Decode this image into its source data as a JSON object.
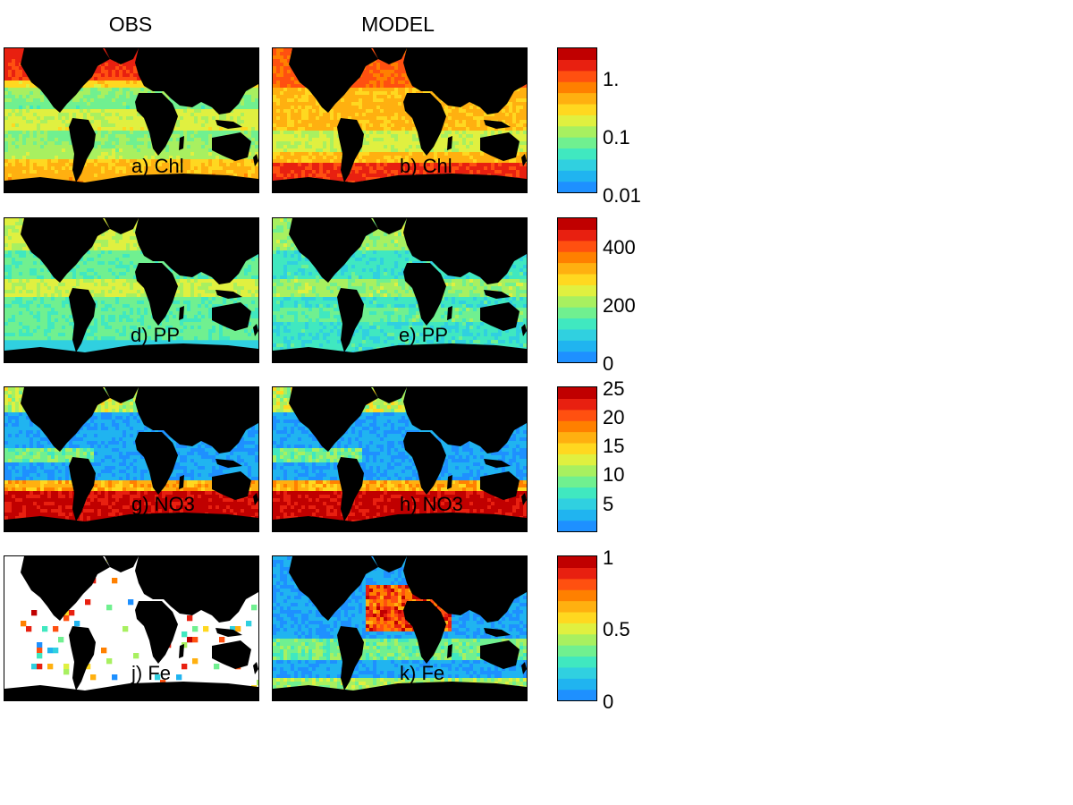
{
  "headers": {
    "obs": "OBS",
    "model": "MODEL"
  },
  "panels": [
    {
      "label": "a) Chl",
      "variant": "obs-chl"
    },
    {
      "label": "b) Chl",
      "variant": "model-chl"
    },
    {
      "label": "d) PP",
      "variant": "obs-pp"
    },
    {
      "label": "e) PP",
      "variant": "model-pp"
    },
    {
      "label": "g) NO3",
      "variant": "obs-no3"
    },
    {
      "label": "h) NO3",
      "variant": "model-no3"
    },
    {
      "label": "j) Fe",
      "variant": "obs-fe"
    },
    {
      "label": "k) Fe",
      "variant": "model-fe"
    }
  ],
  "colorbars": [
    {
      "ticks": [
        "1.",
        "0.1",
        "0.01"
      ]
    },
    {
      "ticks": [
        "400",
        "200",
        "0"
      ]
    },
    {
      "ticks": [
        "25",
        "20",
        "15",
        "10",
        "5"
      ]
    },
    {
      "ticks": [
        "1",
        "0.5",
        "0"
      ]
    }
  ],
  "palette": [
    "#1e90ff",
    "#20b4f0",
    "#30d0e0",
    "#40e8c0",
    "#70f090",
    "#a8f060",
    "#e0f040",
    "#ffd820",
    "#ffb010",
    "#ff8000",
    "#ff5010",
    "#e82010",
    "#c00000"
  ]
}
